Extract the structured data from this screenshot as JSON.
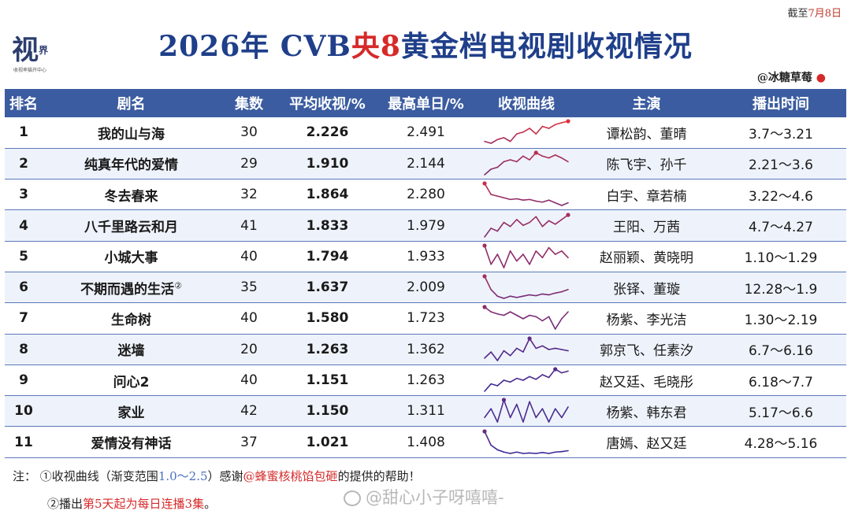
{
  "header": {
    "cutoff_prefix": "截至",
    "cutoff_date": "7月8日",
    "title_part1": "2026年 CVB",
    "title_red": "央8",
    "title_part2": "黄金档电视剧收视情况",
    "credit": "@冰糖草莓",
    "credit_icon": "strawberry-icon",
    "logo_glyph": "视",
    "logo_small": "界",
    "logo_sub": "收视率猫开中心"
  },
  "columns": [
    "排名",
    "剧名",
    "集数",
    "平均收视/%",
    "最高单日/%",
    "收视曲线",
    "主演",
    "播出时间"
  ],
  "colors": {
    "header_bg": "#3b5ca0",
    "title_blue": "#1f3f8a",
    "accent_red": "#d62a2a",
    "curve_high": "#e0303a",
    "curve_low": "#3a2a9a"
  },
  "rows": [
    {
      "rank": "1",
      "drama": "我的山与海",
      "note": "",
      "episodes": "30",
      "avg": "2.226",
      "peak": "2.491",
      "cast": "谭松韵、董晴",
      "airtime": "3.7～3.21"
    },
    {
      "rank": "2",
      "drama": "纯真年代的爱情",
      "note": "",
      "episodes": "29",
      "avg": "1.910",
      "peak": "2.144",
      "cast": "陈飞宇、孙千",
      "airtime": "2.21～3.6"
    },
    {
      "rank": "3",
      "drama": "冬去春来",
      "note": "",
      "episodes": "32",
      "avg": "1.864",
      "peak": "2.280",
      "cast": "白宇、章若楠",
      "airtime": "3.22～4.6"
    },
    {
      "rank": "4",
      "drama": "八千里路云和月",
      "note": "",
      "episodes": "41",
      "avg": "1.833",
      "peak": "1.979",
      "cast": "王阳、万茜",
      "airtime": "4.7～4.27"
    },
    {
      "rank": "5",
      "drama": "小城大事",
      "note": "",
      "episodes": "40",
      "avg": "1.794",
      "peak": "1.933",
      "cast": "赵丽颖、黄晓明",
      "airtime": "1.10～1.29"
    },
    {
      "rank": "6",
      "drama": "不期而遇的生活",
      "note": "②",
      "episodes": "35",
      "avg": "1.637",
      "peak": "2.009",
      "cast": "张铎、董璇",
      "airtime": "12.28～1.9"
    },
    {
      "rank": "7",
      "drama": "生命树",
      "note": "",
      "episodes": "40",
      "avg": "1.580",
      "peak": "1.723",
      "cast": "杨紫、李光洁",
      "airtime": "1.30～2.19"
    },
    {
      "rank": "8",
      "drama": "迷墙",
      "note": "",
      "episodes": "20",
      "avg": "1.263",
      "peak": "1.362",
      "cast": "郭京飞、任素汐",
      "airtime": "6.7～6.16"
    },
    {
      "rank": "9",
      "drama": "问心2",
      "note": "",
      "episodes": "40",
      "avg": "1.151",
      "peak": "1.263",
      "cast": "赵又廷、毛晓彤",
      "airtime": "6.18～7.7"
    },
    {
      "rank": "10",
      "drama": "家业",
      "note": "",
      "episodes": "42",
      "avg": "1.150",
      "peak": "1.311",
      "cast": "杨紫、韩东君",
      "airtime": "5.17～6.6"
    },
    {
      "rank": "11",
      "drama": "爱情没有神话",
      "note": "",
      "episodes": "37",
      "avg": "1.021",
      "peak": "1.408",
      "cast": "唐嫣、赵又廷",
      "airtime": "4.28～5.16"
    }
  ],
  "curves": [
    [
      1.95,
      1.9,
      2.0,
      2.05,
      1.95,
      2.15,
      2.2,
      2.3,
      2.15,
      2.35,
      2.3,
      2.4,
      2.45,
      2.49
    ],
    [
      1.55,
      1.7,
      1.75,
      1.9,
      1.95,
      1.9,
      2.05,
      1.95,
      2.14,
      2.05,
      2.0,
      2.08,
      2.0,
      1.9
    ],
    [
      2.28,
      1.95,
      1.9,
      1.85,
      1.8,
      1.82,
      1.78,
      1.8,
      1.75,
      1.72,
      1.78,
      1.7,
      1.62,
      1.7
    ],
    [
      1.6,
      1.75,
      1.7,
      1.85,
      1.78,
      1.9,
      1.8,
      1.85,
      1.95,
      1.78,
      1.88,
      1.82,
      1.9,
      1.98
    ],
    [
      1.93,
      1.65,
      1.8,
      1.6,
      1.85,
      1.7,
      1.8,
      1.65,
      1.85,
      1.75,
      1.9,
      1.8,
      1.85,
      1.75
    ],
    [
      2.0,
      1.7,
      1.55,
      1.5,
      1.55,
      1.52,
      1.55,
      1.58,
      1.56,
      1.6,
      1.58,
      1.62,
      1.65,
      1.7
    ],
    [
      1.72,
      1.65,
      1.62,
      1.6,
      1.65,
      1.6,
      1.55,
      1.6,
      1.58,
      1.52,
      1.58,
      1.4,
      1.55,
      1.65
    ],
    [
      1.2,
      1.25,
      1.18,
      1.26,
      1.22,
      1.28,
      1.25,
      1.36,
      1.28,
      1.3,
      1.27,
      1.28,
      1.27,
      1.26
    ],
    [
      1.0,
      1.08,
      1.06,
      1.12,
      1.1,
      1.14,
      1.12,
      1.16,
      1.13,
      1.18,
      1.15,
      1.24,
      1.2,
      1.22
    ],
    [
      1.1,
      1.2,
      1.05,
      1.3,
      1.1,
      1.25,
      1.05,
      1.28,
      1.1,
      1.2,
      1.05,
      1.2,
      1.1,
      1.22
    ],
    [
      1.4,
      1.1,
      1.0,
      0.95,
      0.92,
      0.95,
      0.92,
      0.93,
      0.92,
      0.94,
      0.92,
      0.95,
      0.96,
      0.98
    ]
  ],
  "curve_range": [
    1.0,
    2.5
  ],
  "notes": {
    "label": "注：",
    "n1_pre": "①收视曲线（渐变范围",
    "n1_range": "1.0～2.5",
    "n1_mid": "）感谢",
    "n1_thanks": "@蜂蜜核桃馅包砸",
    "n1_post": "的提供的帮助！",
    "n2_pre": "②播出",
    "n2_red": "第5天起为每日连播3集",
    "n2_post": "。"
  },
  "watermark": "@甜心小子呀嘻嘻-"
}
